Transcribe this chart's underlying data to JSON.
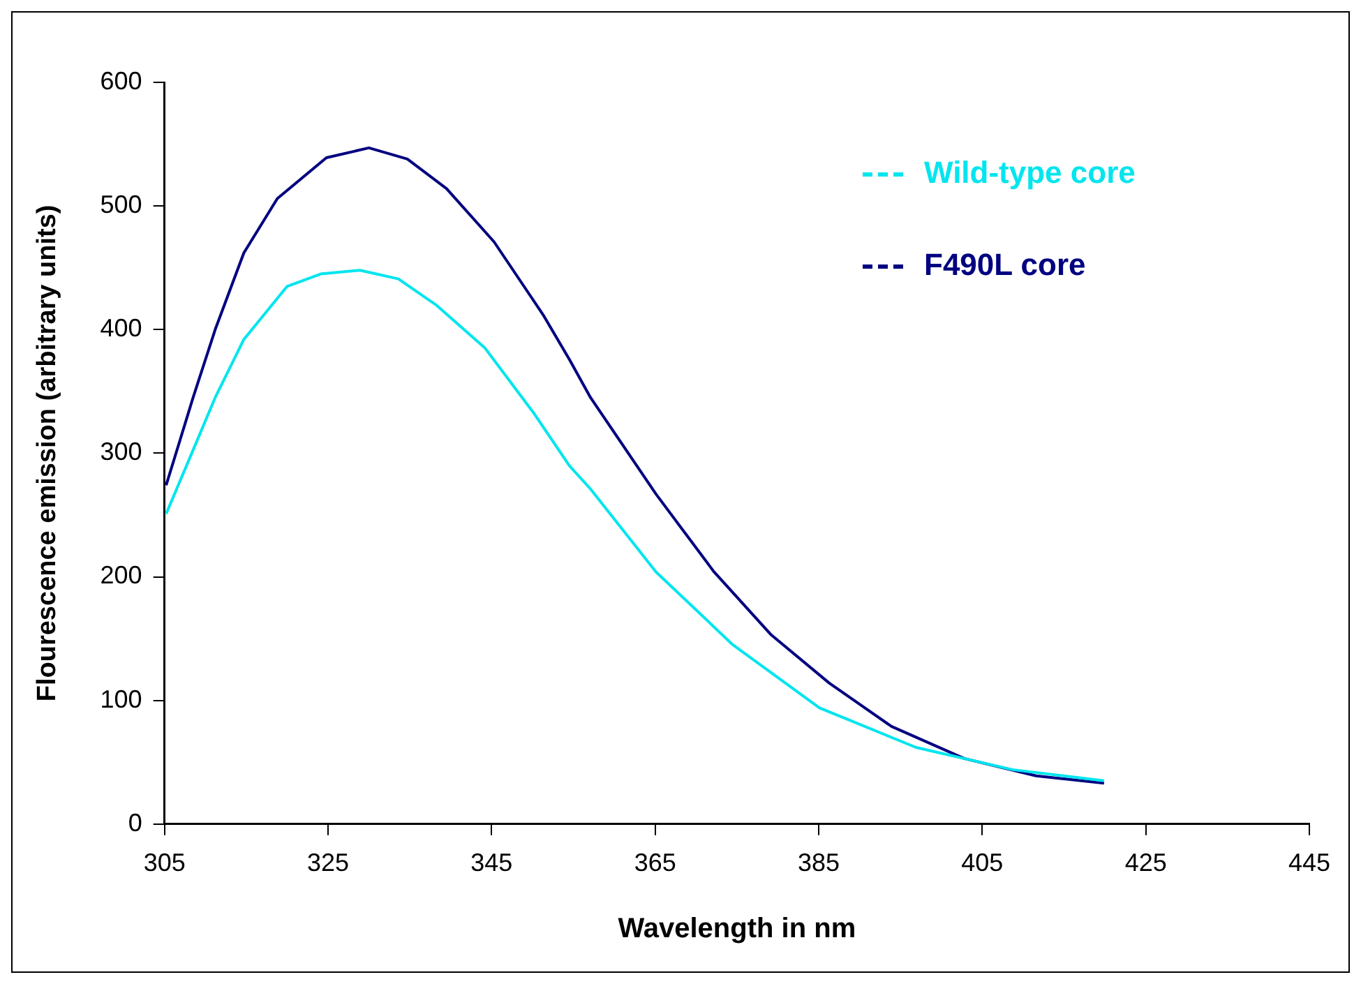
{
  "chart_data": {
    "type": "line",
    "xlabel": "Wavelength in nm",
    "ylabel": "Flourescence emission (arbitrary units)",
    "xlim": [
      305,
      445
    ],
    "xticks": [
      305,
      325,
      345,
      365,
      385,
      405,
      425,
      445
    ],
    "ylim": [
      0,
      600
    ],
    "yticks": [
      0,
      100,
      200,
      300,
      400,
      500,
      600
    ],
    "grid": false,
    "legend": "top right",
    "marker": "none",
    "line_style": "solid",
    "series": [
      {
        "name": "Wild-type core",
        "color": "#00e5ee",
        "x": [
          305.2,
          307.7,
          311.2,
          314.7,
          320,
          324.1,
          328.9,
          333.6,
          338.2,
          344.2,
          350.1,
          354.5,
          357.1,
          365.1,
          374.5,
          385.1,
          396.9,
          408.7,
          419.9
        ],
        "values": [
          251,
          290,
          345,
          392,
          435,
          445,
          448,
          441,
          420,
          385,
          333,
          290,
          271,
          204,
          145,
          94,
          62,
          44,
          35
        ]
      },
      {
        "name": "F490L core",
        "color": "#000080",
        "x": [
          305.2,
          308.5,
          311.2,
          314.7,
          318.8,
          324.8,
          330,
          334.7,
          339.5,
          345.3,
          351.3,
          354.5,
          357.1,
          365.1,
          372.2,
          379.2,
          386.3,
          393.9,
          402.8,
          411.6,
          419.9
        ],
        "values": [
          274,
          345,
          400,
          462,
          506,
          539,
          547,
          538,
          514,
          471,
          412,
          376,
          345,
          267,
          204,
          153,
          114,
          79,
          53,
          39,
          33
        ]
      }
    ]
  }
}
